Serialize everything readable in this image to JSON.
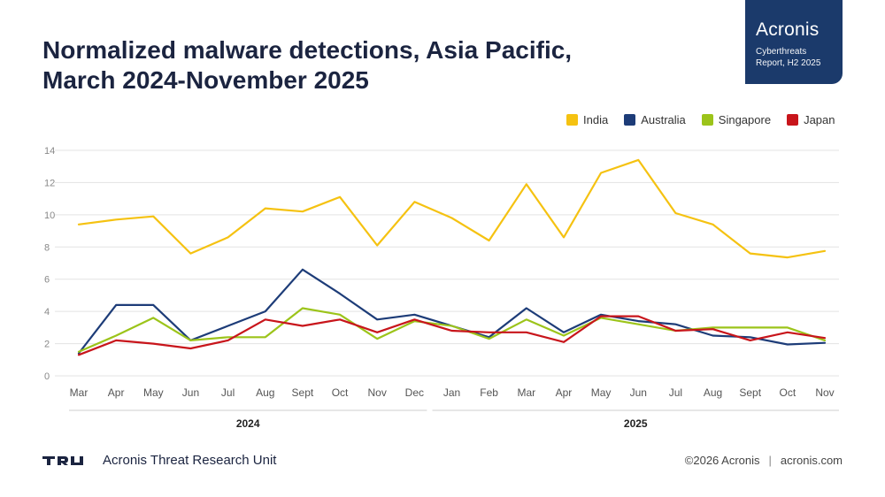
{
  "title_line1": "Normalized malware detections, Asia Pacific,",
  "title_line2": "March 2024-November 2025",
  "badge": {
    "name": "Acronis",
    "sub1": "Cyberthreats",
    "sub2": "Report, H2 2025"
  },
  "footer": {
    "unit": "Acronis Threat Research Unit",
    "copyright": "©2026 Acronis",
    "separator": "|",
    "site": "acronis.com"
  },
  "colors": {
    "india": "#f5c211",
    "australia": "#1d3c78",
    "singapore": "#9cc41a",
    "japan": "#c8151b"
  },
  "chart_data": {
    "type": "line",
    "title": "Normalized malware detections, Asia Pacific, March 2024-November 2025",
    "categories": [
      "Mar",
      "Apr",
      "May",
      "Jun",
      "Jul",
      "Aug",
      "Sept",
      "Oct",
      "Nov",
      "Dec",
      "Jan",
      "Feb",
      "Mar",
      "Apr",
      "May",
      "Jun",
      "Jul",
      "Aug",
      "Sept",
      "Oct",
      "Nov"
    ],
    "groups": [
      {
        "label": "2024",
        "from": 0,
        "to": 9
      },
      {
        "label": "2025",
        "from": 10,
        "to": 20
      }
    ],
    "ylim": [
      0,
      14
    ],
    "yticks": [
      0,
      2,
      4,
      6,
      8,
      10,
      12,
      14
    ],
    "grid": true,
    "legend_position": "top-right",
    "series": [
      {
        "name": "India",
        "color": "#f5c211",
        "values": [
          9.4,
          9.7,
          9.9,
          7.6,
          8.6,
          10.4,
          10.2,
          11.1,
          8.1,
          10.8,
          9.8,
          8.4,
          11.9,
          8.6,
          12.6,
          13.4,
          10.1,
          9.4,
          7.6,
          7.35,
          7.75
        ]
      },
      {
        "name": "Australia",
        "color": "#1d3c78",
        "values": [
          1.4,
          4.4,
          4.4,
          2.2,
          3.1,
          4.0,
          6.6,
          5.1,
          3.5,
          3.8,
          3.1,
          2.4,
          4.2,
          2.7,
          3.8,
          3.4,
          3.2,
          2.5,
          2.4,
          1.95,
          2.05
        ]
      },
      {
        "name": "Singapore",
        "color": "#9cc41a",
        "values": [
          1.5,
          2.5,
          3.6,
          2.2,
          2.4,
          2.4,
          4.2,
          3.8,
          2.3,
          3.4,
          3.1,
          2.3,
          3.5,
          2.5,
          3.6,
          3.2,
          2.8,
          3.0,
          3.0,
          3.0,
          2.2
        ]
      },
      {
        "name": "Japan",
        "color": "#c8151b",
        "values": [
          1.3,
          2.2,
          2.0,
          1.7,
          2.2,
          3.5,
          3.1,
          3.5,
          2.7,
          3.5,
          2.8,
          2.7,
          2.7,
          2.1,
          3.7,
          3.7,
          2.8,
          2.9,
          2.2,
          2.7,
          2.35
        ]
      }
    ]
  }
}
